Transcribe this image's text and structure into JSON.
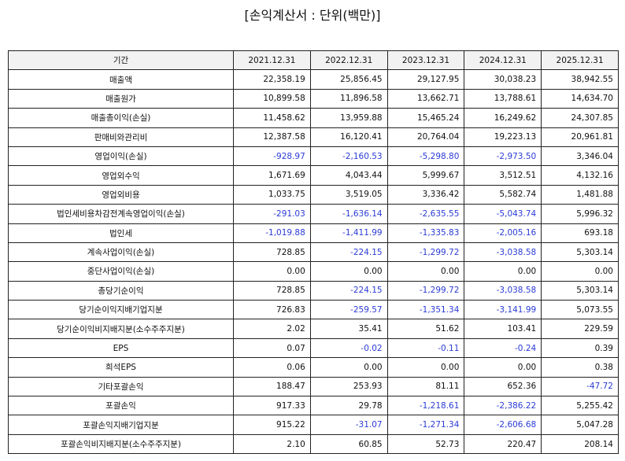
{
  "title": "[손익계산서 : 단위(백만)]",
  "table": {
    "header": [
      "기간",
      "2021.12.31",
      "2022.12.31",
      "2023.12.31",
      "2024.12.31",
      "2025.12.31"
    ],
    "rows": [
      [
        "매출액",
        "22,358.19",
        "25,856.45",
        "29,127.95",
        "30,038.23",
        "38,942.55"
      ],
      [
        "매출원가",
        "10,899.58",
        "11,896.58",
        "13,662.71",
        "13,788.61",
        "14,634.70"
      ],
      [
        "매출총이익(손실)",
        "11,458.62",
        "13,959.88",
        "15,465.24",
        "16,249.62",
        "24,307.85"
      ],
      [
        "판매비와관리비",
        "12,387.58",
        "16,120.41",
        "20,764.04",
        "19,223.13",
        "20,961.81"
      ],
      [
        "영업이익(손실)",
        "-928.97",
        "-2,160.53",
        "-5,298.80",
        "-2,973.50",
        "3,346.04"
      ],
      [
        "영업외수익",
        "1,671.69",
        "4,043.44",
        "5,999.67",
        "3,512.51",
        "4,132.16"
      ],
      [
        "영업외비용",
        "1,033.75",
        "3,519.05",
        "3,336.42",
        "5,582.74",
        "1,481.88"
      ],
      [
        "법인세비용차감전계속영업이익(손실)",
        "-291.03",
        "-1,636.14",
        "-2,635.55",
        "-5,043.74",
        "5,996.32"
      ],
      [
        "법인세",
        "-1,019.88",
        "-1,411.99",
        "-1,335.83",
        "-2,005.16",
        "693.18"
      ],
      [
        "계속사업이익(손실)",
        "728.85",
        "-224.15",
        "-1,299.72",
        "-3,038.58",
        "5,303.14"
      ],
      [
        "중단사업이익(손실)",
        "0.00",
        "0.00",
        "0.00",
        "0.00",
        "0.00"
      ],
      [
        "총당기순이익",
        "728.85",
        "-224.15",
        "-1,299.72",
        "-3,038.58",
        "5,303.14"
      ],
      [
        "당기순이익지배기업지분",
        "726.83",
        "-259.57",
        "-1,351.34",
        "-3,141.99",
        "5,073.55"
      ],
      [
        "당기순이익비지배지분(소수주주지분)",
        "2.02",
        "35.41",
        "51.62",
        "103.41",
        "229.59"
      ],
      [
        "EPS",
        "0.07",
        "-0.02",
        "-0.11",
        "-0.24",
        "0.39"
      ],
      [
        "희석EPS",
        "0.06",
        "0.00",
        "0.00",
        "0.00",
        "0.38"
      ],
      [
        "기타포괄손익",
        "188.47",
        "253.93",
        "81.11",
        "652.36",
        "-47.72"
      ],
      [
        "포괄손익",
        "917.33",
        "29.78",
        "-1,218.61",
        "-2,386.22",
        "5,255.42"
      ],
      [
        "포괄손익지배기업지분",
        "915.22",
        "-31.07",
        "-1,271.34",
        "-2,606.68",
        "5,047.28"
      ],
      [
        "포괄손익비지배지분(소수주주지분)",
        "2.10",
        "60.85",
        "52.73",
        "220.47",
        "208.14"
      ]
    ]
  }
}
